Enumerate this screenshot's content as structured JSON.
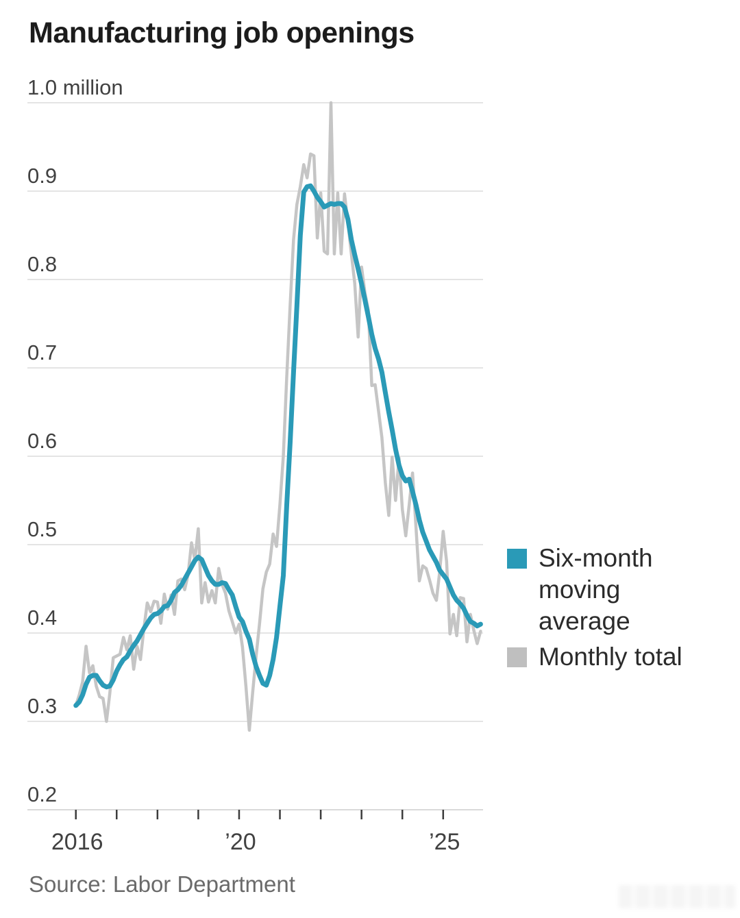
{
  "page": {
    "title": "Manufacturing job openings",
    "source": "Source: Labor Department"
  },
  "legend": [
    {
      "label": "Six-month moving average",
      "color": "#2a9ab7"
    },
    {
      "label": "Monthly total",
      "color": "#bfbfbf"
    }
  ],
  "chart_data": {
    "type": "line",
    "title": "Manufacturing job openings",
    "unit": "million",
    "x_unit": "month",
    "x_first": "2016-01",
    "x_last": "2025-12",
    "x_tick_years": [
      2016,
      2017,
      2018,
      2019,
      2020,
      2021,
      2022,
      2023,
      2024,
      2025
    ],
    "x_tick_labels": {
      "2016": "2016",
      "2020": "’20",
      "2025": "’25"
    },
    "ylim": [
      0.2,
      1.0
    ],
    "y_ticks": [
      0.2,
      0.3,
      0.4,
      0.5,
      0.6,
      0.7,
      0.8,
      0.9,
      1.0
    ],
    "y_top_label": "1.0 million",
    "grid": "horizontal",
    "legend_position": "right",
    "line_colors": {
      "moving_average": "#2a9ab7",
      "monthly_total": "#c5c5c5"
    },
    "series": [
      {
        "name": "Six-month moving average",
        "color": "#2a9ab7",
        "values": [
          0.318,
          0.322,
          0.33,
          0.342,
          0.35,
          0.352,
          0.352,
          0.346,
          0.341,
          0.339,
          0.34,
          0.347,
          0.357,
          0.364,
          0.37,
          0.373,
          0.38,
          0.386,
          0.391,
          0.398,
          0.405,
          0.411,
          0.417,
          0.421,
          0.422,
          0.425,
          0.43,
          0.431,
          0.437,
          0.446,
          0.449,
          0.454,
          0.461,
          0.468,
          0.475,
          0.482,
          0.486,
          0.483,
          0.474,
          0.465,
          0.459,
          0.455,
          0.455,
          0.457,
          0.456,
          0.449,
          0.443,
          0.43,
          0.418,
          0.413,
          0.402,
          0.393,
          0.376,
          0.362,
          0.352,
          0.343,
          0.341,
          0.352,
          0.37,
          0.395,
          0.43,
          0.465,
          0.545,
          0.615,
          0.695,
          0.77,
          0.85,
          0.899,
          0.905,
          0.906,
          0.9,
          0.893,
          0.888,
          0.882,
          0.884,
          0.886,
          0.885,
          0.886,
          0.886,
          0.882,
          0.868,
          0.845,
          0.828,
          0.812,
          0.795,
          0.777,
          0.758,
          0.738,
          0.722,
          0.71,
          0.695,
          0.672,
          0.65,
          0.63,
          0.608,
          0.59,
          0.578,
          0.572,
          0.574,
          0.56,
          0.545,
          0.528,
          0.514,
          0.504,
          0.494,
          0.487,
          0.48,
          0.471,
          0.466,
          0.461,
          0.452,
          0.443,
          0.437,
          0.433,
          0.428,
          0.42,
          0.413,
          0.411,
          0.408,
          0.41
        ]
      },
      {
        "name": "Monthly total",
        "color": "#c5c5c5",
        "values": [
          0.318,
          0.33,
          0.345,
          0.385,
          0.355,
          0.363,
          0.34,
          0.328,
          0.326,
          0.3,
          0.332,
          0.372,
          0.374,
          0.376,
          0.395,
          0.381,
          0.397,
          0.359,
          0.385,
          0.37,
          0.405,
          0.434,
          0.424,
          0.436,
          0.435,
          0.411,
          0.444,
          0.427,
          0.443,
          0.421,
          0.459,
          0.461,
          0.449,
          0.466,
          0.502,
          0.483,
          0.518,
          0.434,
          0.457,
          0.435,
          0.448,
          0.434,
          0.473,
          0.455,
          0.445,
          0.425,
          0.413,
          0.4,
          0.41,
          0.384,
          0.34,
          0.29,
          0.333,
          0.374,
          0.41,
          0.45,
          0.469,
          0.478,
          0.512,
          0.498,
          0.545,
          0.6,
          0.69,
          0.77,
          0.845,
          0.885,
          0.905,
          0.93,
          0.915,
          0.942,
          0.94,
          0.847,
          0.898,
          0.832,
          0.829,
          1.0,
          0.829,
          0.898,
          0.829,
          0.897,
          0.864,
          0.829,
          0.796,
          0.735,
          0.814,
          0.785,
          0.765,
          0.68,
          0.681,
          0.651,
          0.621,
          0.57,
          0.533,
          0.599,
          0.55,
          0.598,
          0.54,
          0.51,
          0.545,
          0.581,
          0.52,
          0.459,
          0.476,
          0.473,
          0.46,
          0.445,
          0.437,
          0.47,
          0.515,
          0.481,
          0.399,
          0.421,
          0.397,
          0.44,
          0.439,
          0.39,
          0.421,
          0.403,
          0.388,
          0.402
        ]
      }
    ]
  }
}
